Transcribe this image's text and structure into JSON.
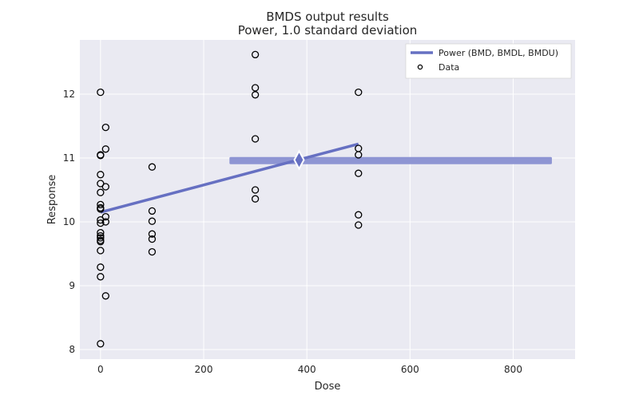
{
  "chart_data": {
    "type": "scatter",
    "title": "BMDS output results",
    "subtitle": "Power, 1.0 standard deviation",
    "xlabel": "Dose",
    "ylabel": "Response",
    "xlim": [
      -40,
      920
    ],
    "ylim": [
      7.85,
      12.85
    ],
    "xticks": [
      0,
      200,
      400,
      600,
      800
    ],
    "yticks": [
      8,
      9,
      10,
      11,
      12
    ],
    "grid": true,
    "legend_position": "top-right",
    "colors": {
      "background": "#EAEAF2",
      "grid": "#FFFFFF",
      "model_line": "#6670C2",
      "bmd_band": "#8E95D3",
      "marker_edge": "#000000"
    },
    "series": [
      {
        "name": "Power (BMD, BMDL, BMDU)",
        "kind": "line",
        "x": [
          0,
          500
        ],
        "y": [
          10.15,
          11.22
        ],
        "bmd": {
          "x": 385,
          "y": 10.97
        },
        "bmd_range": {
          "bmdl": 250,
          "bmdu": 875,
          "y": 10.96
        }
      },
      {
        "name": "Data",
        "kind": "scatter",
        "points": [
          [
            0,
            12.03
          ],
          [
            0,
            11.05
          ],
          [
            0,
            11.04
          ],
          [
            0,
            10.74
          ],
          [
            0,
            10.6
          ],
          [
            0,
            10.46
          ],
          [
            0,
            10.27
          ],
          [
            0,
            10.22
          ],
          [
            0,
            10.2
          ],
          [
            0,
            10.03
          ],
          [
            0,
            9.98
          ],
          [
            0,
            9.83
          ],
          [
            0,
            9.78
          ],
          [
            0,
            9.75
          ],
          [
            0,
            9.71
          ],
          [
            0,
            9.69
          ],
          [
            0,
            9.55
          ],
          [
            0,
            9.29
          ],
          [
            0,
            9.14
          ],
          [
            0,
            8.09
          ],
          [
            10,
            11.48
          ],
          [
            10,
            11.14
          ],
          [
            10,
            10.55
          ],
          [
            10,
            10.08
          ],
          [
            10,
            10.0
          ],
          [
            10,
            8.84
          ],
          [
            100,
            10.86
          ],
          [
            100,
            10.17
          ],
          [
            100,
            10.01
          ],
          [
            100,
            9.81
          ],
          [
            100,
            9.73
          ],
          [
            100,
            9.53
          ],
          [
            300,
            12.62
          ],
          [
            300,
            12.1
          ],
          [
            300,
            11.99
          ],
          [
            300,
            11.3
          ],
          [
            300,
            10.5
          ],
          [
            300,
            10.36
          ],
          [
            500,
            12.03
          ],
          [
            500,
            11.15
          ],
          [
            500,
            11.05
          ],
          [
            500,
            10.76
          ],
          [
            500,
            10.11
          ],
          [
            500,
            9.95
          ]
        ]
      }
    ]
  }
}
